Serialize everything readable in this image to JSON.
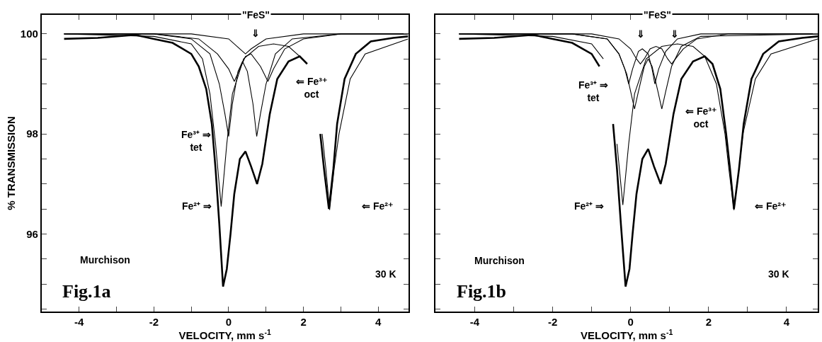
{
  "chart_data": [
    {
      "type": "line",
      "xlabel": "VELOCITY, mm s$^{-1}$",
      "ylabel": "% TRANSMISSION",
      "xlim": [
        -5,
        4.8
      ],
      "ylim": [
        94.45,
        100.38
      ],
      "xticks": [
        -4,
        {
          "value": -3,
          "label": null
        },
        -2,
        {
          "value": -1,
          "label": null
        },
        0,
        {
          "value": 1,
          "label": null
        },
        2,
        {
          "value": 3,
          "label": null
        },
        4
      ],
      "yticks": [
        {
          "value": 94.5,
          "label": null
        },
        {
          "value": 95,
          "label": null
        },
        {
          "value": 95.5,
          "label": null
        },
        96,
        {
          "value": 96.5,
          "label": null
        },
        {
          "value": 97,
          "label": null
        },
        {
          "value": 97.5,
          "label": null
        },
        98,
        {
          "value": 98.5,
          "label": null
        },
        {
          "value": 99,
          "label": null
        },
        {
          "value": 99.5,
          "label": null
        },
        100
      ],
      "series": [
        {
          "color": "#000000",
          "x": [
            -4.4,
            -3.5,
            -2.5,
            -2,
            -1.5,
            -1,
            -0.8,
            -0.6,
            -0.45,
            -0.35,
            -0.25,
            -0.15,
            -0.05,
            0.05,
            0.15,
            0.3,
            0.45,
            0.6,
            0.76,
            0.9,
            1.1,
            1.3,
            1.6,
            1.9,
            2.1,
            2.3,
            2.45,
            2.55,
            2.68,
            2.8,
            2.9,
            3.1,
            3.4,
            3.8,
            4.4,
            4.8
          ],
          "values": [
            99.9,
            99.92,
            99.98,
            99.9,
            99.82,
            99.6,
            99.35,
            98.9,
            98.2,
            97.3,
            96.2,
            94.95,
            95.3,
            96.0,
            96.8,
            97.5,
            97.65,
            97.35,
            97.0,
            97.4,
            98.4,
            99.1,
            99.45,
            99.55,
            99.4,
            null,
            98.0,
            97.3,
            96.5,
            97.3,
            98.2,
            99.1,
            99.6,
            99.85,
            99.92,
            99.95
          ]
        },
        {
          "color": "#000000",
          "x": [
            -4.4,
            -2,
            -1,
            -0.7,
            -0.5,
            -0.35,
            -0.2,
            -0.05,
            0.1,
            0.4,
            0.8,
            1.2,
            1.6,
            1.9,
            2.2,
            2.5,
            2.6,
            2.7,
            2.82,
            2.95,
            3.25,
            3.65,
            4.8
          ],
          "values": [
            100,
            99.95,
            99.8,
            99.5,
            98.8,
            97.8,
            96.55,
            97.8,
            98.8,
            99.5,
            99.75,
            99.8,
            99.75,
            99.55,
            null,
            98.0,
            97.3,
            96.48,
            97.3,
            98.0,
            99.1,
            99.6,
            99.9
          ]
        },
        {
          "color": "#000000",
          "x": [
            -4.4,
            -2,
            -1,
            -0.5,
            -0.25,
            -0.1,
            0.0,
            0.1,
            0.25,
            0.37,
            0.5,
            0.65,
            0.75,
            0.85,
            1.0,
            1.25,
            1.7,
            3,
            4.8
          ],
          "values": [
            100,
            100,
            99.9,
            99.6,
            99.0,
            98.4,
            97.95,
            98.6,
            99.25,
            99.45,
            99.25,
            98.6,
            97.95,
            98.4,
            99.0,
            99.6,
            99.9,
            100,
            100
          ]
        },
        {
          "color": "#000000",
          "x": [
            -4.4,
            -2,
            -0.8,
            -0.3,
            0,
            0.15,
            0.3,
            0.45,
            0.6,
            0.85,
            1.05,
            1.2,
            1.5,
            2,
            3,
            4.8
          ],
          "values": [
            100,
            100,
            99.9,
            99.6,
            99.3,
            99.05,
            99.3,
            99.55,
            99.6,
            99.35,
            99.05,
            99.3,
            99.7,
            99.9,
            100,
            100
          ]
        },
        {
          "color": "#000000",
          "x": [
            -4.4,
            -1,
            0,
            0.3,
            0.45,
            0.6,
            1.0,
            2,
            4.8
          ],
          "values": [
            100,
            100,
            99.9,
            99.7,
            99.6,
            99.7,
            99.9,
            100,
            100
          ]
        }
      ],
      "annotations": [
        "\"FeS\"",
        "⇓",
        "⇐ Fe³⁺\noct",
        "Fe³⁺ ⇒\ntet",
        "Fe²⁺ ⇒",
        "⇐ Fe²⁺",
        "Murchison",
        "30 K",
        "Fig.1a"
      ]
    },
    {
      "type": "line",
      "xlabel": "VELOCITY, mm s$^{-1}$",
      "xlim": [
        -5,
        4.8
      ],
      "ylim": [
        94.45,
        100.38
      ],
      "tick_labels": "x",
      "xticks": [
        -4,
        {
          "value": -3,
          "label": null
        },
        -2,
        {
          "value": -1,
          "label": null
        },
        0,
        {
          "value": 1,
          "label": null
        },
        2,
        {
          "value": 3,
          "label": null
        },
        4
      ],
      "yticks": [
        {
          "value": 94.5,
          "label": null
        },
        {
          "value": 95,
          "label": null
        },
        {
          "value": 95.5,
          "label": null
        },
        {
          "value": 96,
          "label": null
        },
        {
          "value": 96.5,
          "label": null
        },
        {
          "value": 97,
          "label": null
        },
        {
          "value": 97.5,
          "label": null
        },
        {
          "value": 98,
          "label": null
        },
        {
          "value": 98.5,
          "label": null
        },
        {
          "value": 99,
          "label": null
        },
        {
          "value": 99.5,
          "label": null
        },
        {
          "value": 100,
          "label": null
        }
      ],
      "series": [
        {
          "color": "#000000",
          "x": [
            -4.4,
            -3.5,
            -2.5,
            -2,
            -1.5,
            -1,
            -0.8,
            -0.6,
            -0.45,
            -0.35,
            -0.25,
            -0.13,
            -0.03,
            0.05,
            0.15,
            0.3,
            0.45,
            0.6,
            0.77,
            0.9,
            1.1,
            1.3,
            1.6,
            1.9,
            2.1,
            2.3,
            2.45,
            2.55,
            2.65,
            2.78,
            2.9,
            3.1,
            3.4,
            3.8,
            4.4,
            4.8
          ],
          "values": [
            99.9,
            99.92,
            99.98,
            99.9,
            99.82,
            99.6,
            99.35,
            null,
            98.2,
            97.3,
            96.2,
            94.95,
            95.3,
            96.0,
            96.8,
            97.5,
            97.7,
            97.35,
            97.0,
            97.4,
            98.4,
            99.1,
            99.45,
            99.55,
            99.4,
            98.9,
            98.0,
            97.3,
            96.5,
            97.3,
            98.2,
            99.1,
            99.6,
            99.85,
            99.92,
            99.95
          ]
        },
        {
          "color": "#000000",
          "x": [
            -4.4,
            -2,
            -1,
            -0.7,
            -0.5,
            -0.35,
            -0.2,
            -0.05,
            0.1,
            0.4,
            0.8,
            1.2,
            1.6,
            1.9,
            2.2,
            2.42,
            2.52,
            2.65,
            2.78,
            2.88,
            3.2,
            3.6,
            4.8
          ],
          "values": [
            100,
            99.95,
            99.8,
            99.5,
            null,
            97.8,
            96.58,
            97.8,
            98.8,
            99.5,
            99.75,
            99.8,
            99.75,
            99.55,
            99.0,
            98.0,
            97.3,
            96.48,
            97.3,
            98.0,
            99.1,
            99.6,
            99.9
          ]
        },
        {
          "color": "#000000",
          "x": [
            -4.4,
            -1.5,
            -0.6,
            -0.3,
            -0.1,
            0.0,
            0.1,
            0.2,
            0.35,
            0.45,
            0.55,
            0.7,
            0.8,
            0.9,
            1.05,
            1.3,
            1.8,
            4.8
          ],
          "values": [
            100,
            100,
            99.9,
            99.6,
            99.2,
            98.85,
            98.5,
            98.85,
            99.35,
            99.5,
            99.35,
            98.85,
            98.5,
            98.85,
            99.35,
            99.75,
            99.95,
            100
          ]
        },
        {
          "color": "#000000",
          "x": [
            -4.4,
            -1.5,
            -0.6,
            -0.3,
            -0.15,
            -0.05,
            0.05,
            0.2,
            0.3,
            0.45,
            0.55,
            0.62,
            0.72,
            0.9,
            1.2,
            1.8,
            4.8
          ],
          "values": [
            100,
            100,
            99.9,
            99.6,
            99.3,
            99.0,
            99.3,
            99.65,
            99.7,
            99.6,
            99.3,
            99.0,
            99.3,
            99.65,
            99.9,
            100,
            100
          ]
        },
        {
          "color": "#000000",
          "x": [
            -4.4,
            -1,
            -0.3,
            0,
            0.15,
            0.25,
            0.35,
            0.5,
            0.65,
            0.8,
            0.95,
            1.05,
            1.15,
            1.35,
            1.7,
            2.5,
            4.8
          ],
          "values": [
            100,
            100,
            99.9,
            99.7,
            99.5,
            99.4,
            99.5,
            99.7,
            99.75,
            99.7,
            99.5,
            99.4,
            99.5,
            99.7,
            99.9,
            100,
            100
          ]
        }
      ],
      "annotations": [
        "\"FeS\"",
        "⇓",
        "⇓",
        "Fe³⁺ ⇒\ntet",
        "⇐ Fe³⁺\noct",
        "Fe²⁺ ⇒",
        "⇐ Fe²⁺",
        "Murchison",
        "30 K",
        "Fig.1b"
      ]
    }
  ]
}
